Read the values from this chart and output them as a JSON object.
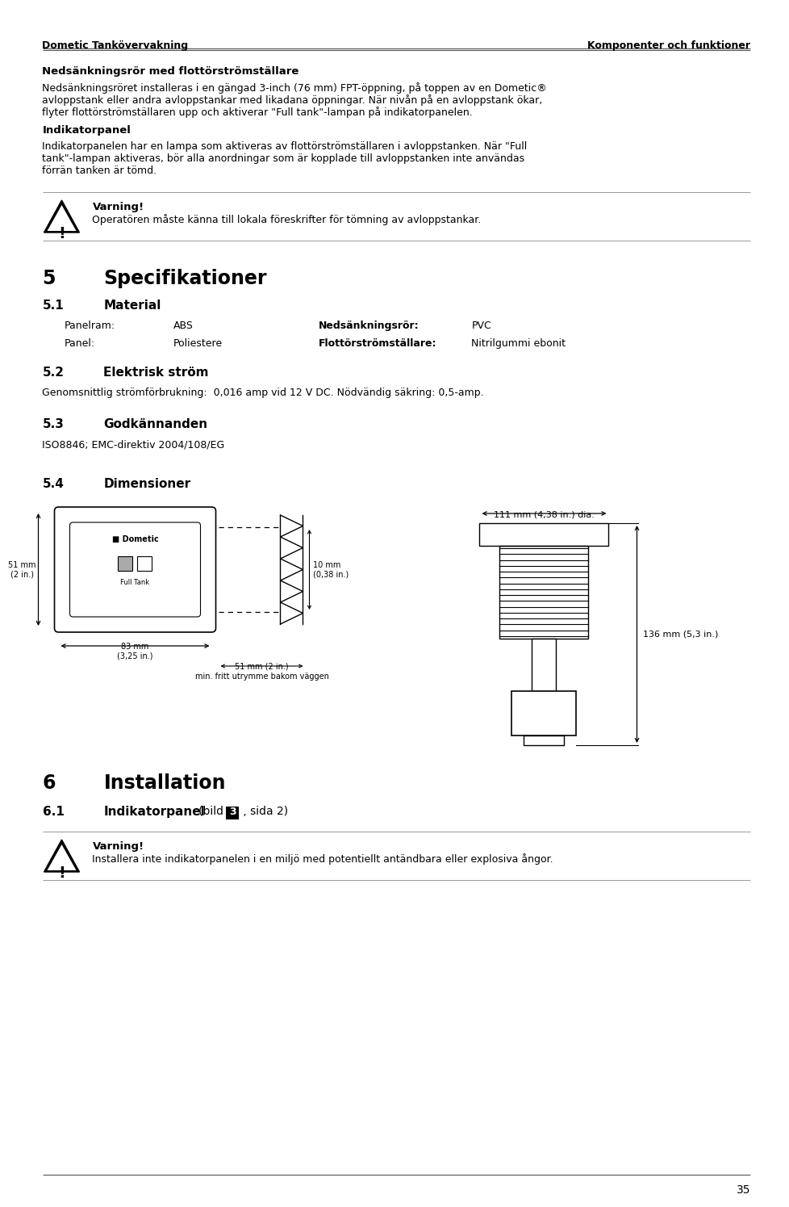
{
  "header_left": "Dometic Tankövervakning",
  "header_right": "Komponenter och funktioner",
  "page_number": "35",
  "section_bold1": "Nedsänkningsrör med flottörströmställare",
  "para1_line1": "Nedsänkningsröret installeras i en gängad 3-inch (76 mm) FPT-öppning, på toppen av en Dometic®",
  "para1_line2": "avloppstank eller andra avloppstankar med likadana öppningar. När nivån på en avloppstank ökar,",
  "para1_line3": "flyter flottörströmställaren upp och aktiverar \"Full tank\"-lampan på indikatorpanelen.",
  "section_bold2": "Indikatorpanel",
  "para2_line1": "Indikatorpanelen har en lampa som aktiveras av flottörströmställaren i avloppstanken. När \"Full",
  "para2_line2": "tank\"-lampan aktiveras, bör alla anordningar som är kopplade till avloppstanken inte användas",
  "para2_line3": "förrän tanken är tömd.",
  "warning1_title": "Varning!",
  "warning1_text": "Operatören måste känna till lokala föreskrifter för tömning av avloppstankar.",
  "ch5_num": "5",
  "ch5_title": "Specifikationer",
  "s51_num": "5.1",
  "s51_title": "Material",
  "mat_col1_r1": "Panelram:",
  "mat_col2_r1": "ABS",
  "mat_col3_r1": "Nedsänkningsrör:",
  "mat_col4_r1": "PVC",
  "mat_col1_r2": "Panel:",
  "mat_col2_r2": "Poliestere",
  "mat_col3_r2": "Flottörströmställare:",
  "mat_col4_r2": "Nitrilgummi ebonit",
  "s52_num": "5.2",
  "s52_title": "Elektrisk ström",
  "para52": "Genomsnittlig strömförbrukning:  0,016 amp vid 12 V DC. Nödvändig säkring: 0,5-amp.",
  "s53_num": "5.3",
  "s53_title": "Godkännanden",
  "para53": "ISO8846; EMC-direktiv 2004/108/EG",
  "s54_num": "5.4",
  "s54_title": "Dimensioner",
  "dim_111mm": "111 mm (4,38 in.) dia.",
  "dim_136mm": "136 mm (5,3 in.)",
  "dim_51mm_h": "51 mm\n(2 in.)",
  "dim_83mm": "83 mm\n(3,25 in.)",
  "dim_10mm": "10 mm\n(0,38 in.)",
  "dim_51mm_depth": "51 mm (2 in.)\nmin. fritt utrymme bakom väggen",
  "panel_logo": "■ Dometic",
  "panel_full_tank": "Full Tank",
  "ch6_num": "6",
  "ch6_title": "Installation",
  "s61_num": "6.1",
  "s61_title": "Indikatorpanel",
  "s61_bild_pre": "(bild ",
  "s61_bild_num": "3",
  "s61_bild_post": " , sida 2)",
  "warning2_title": "Varning!",
  "warning2_text": "Installera inte indikatorpanelen i en miljö med potentiellt antändbara eller explosiva ångor.",
  "bg_color": "#ffffff",
  "text_color": "#000000"
}
